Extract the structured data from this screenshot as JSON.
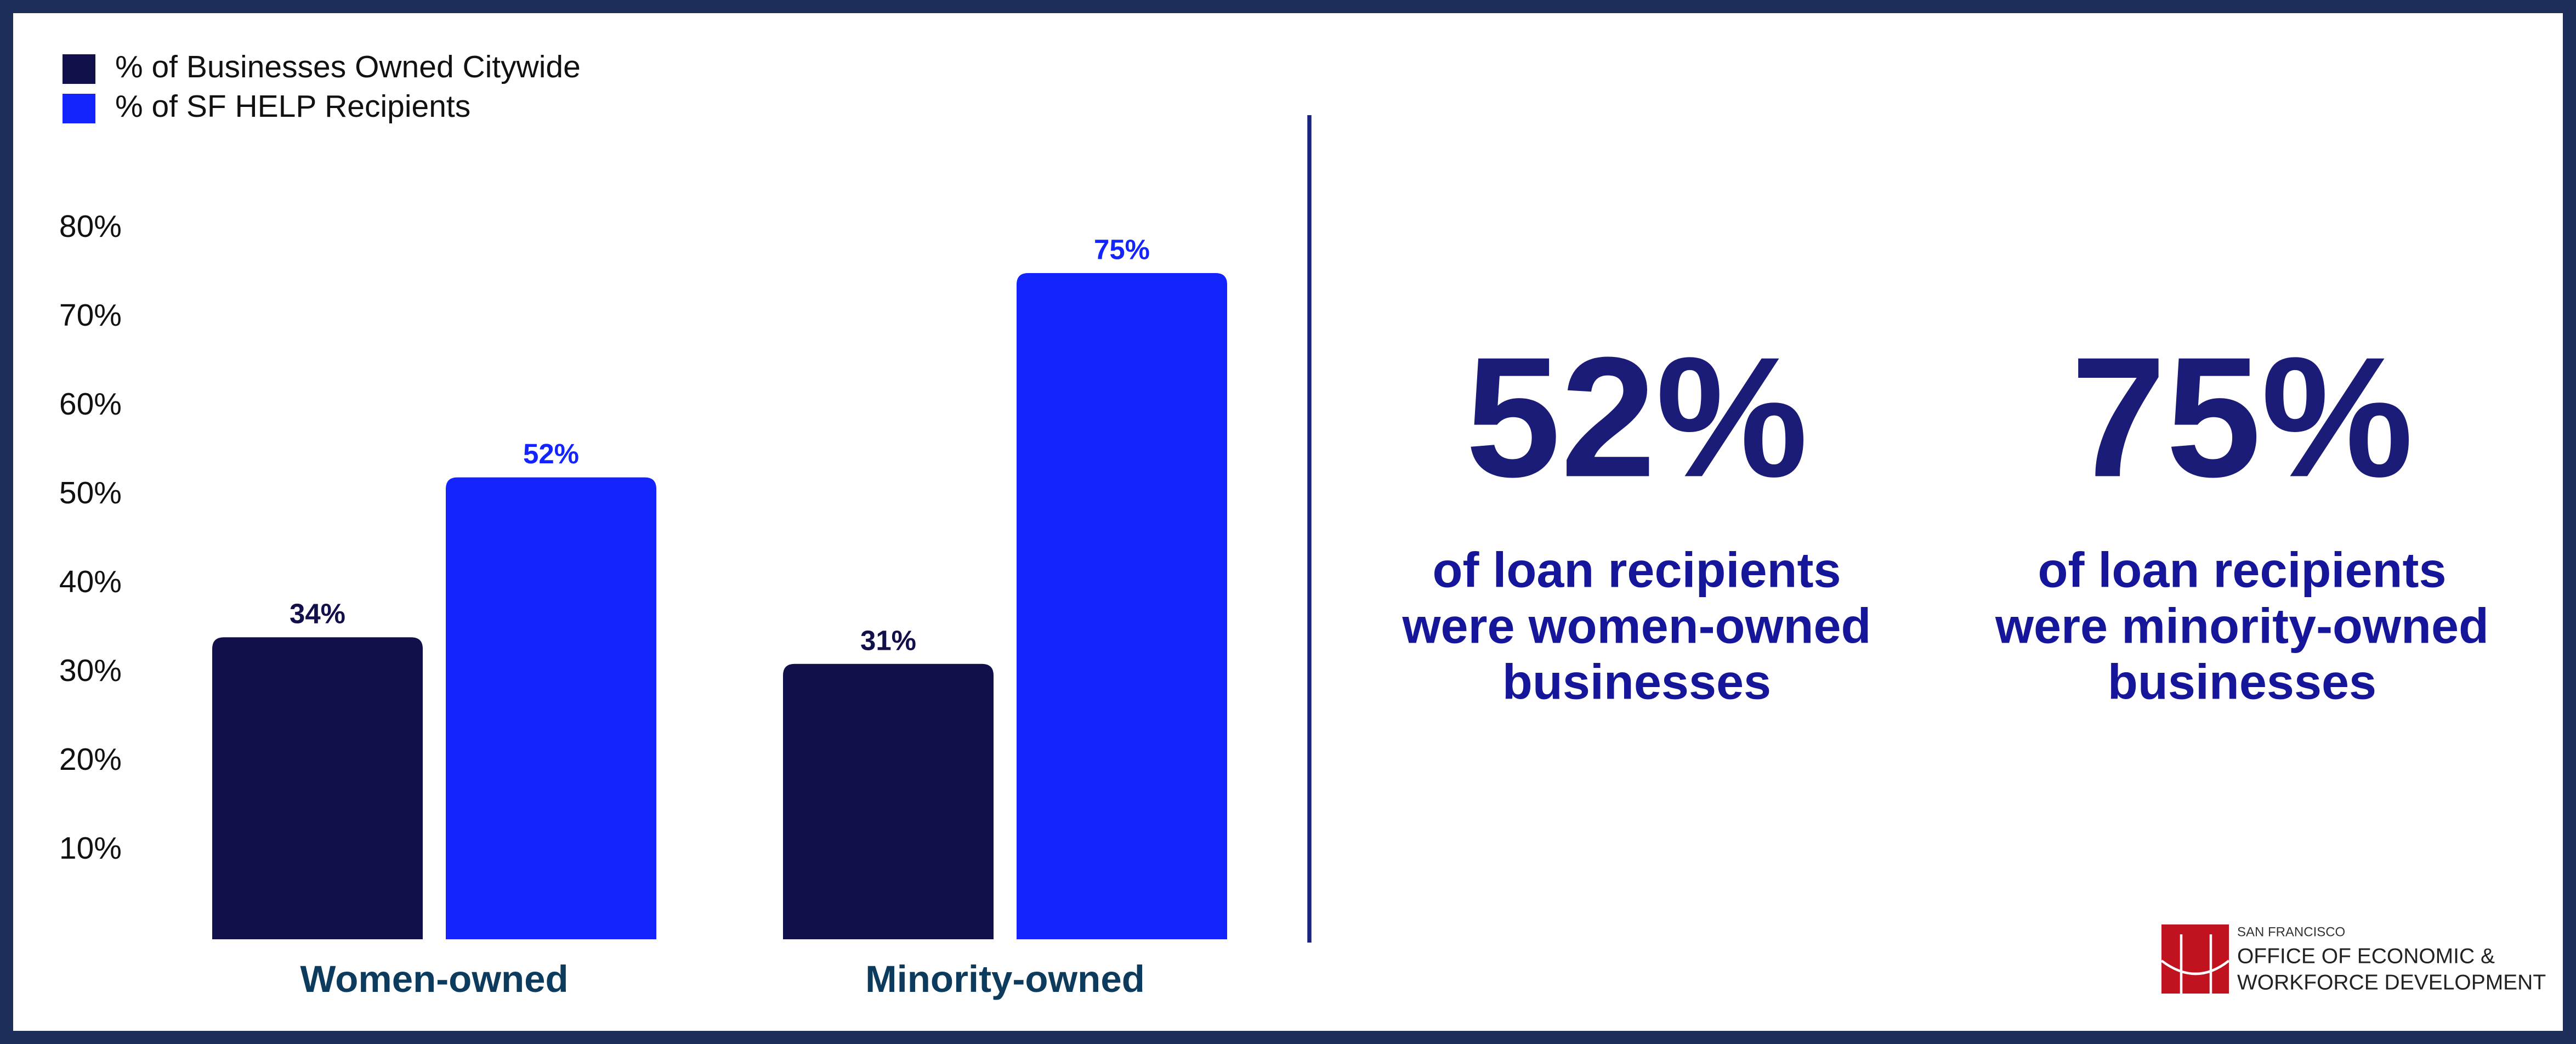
{
  "chart_data": {
    "type": "bar",
    "categories": [
      "Women-owned",
      "Minority-owned"
    ],
    "series": [
      {
        "name": "% of Businesses Owned Citywide",
        "color": "#12104a",
        "values": [
          34,
          31
        ],
        "value_labels": [
          "34%",
          "31%"
        ]
      },
      {
        "name": "% of SF HELP Recipients",
        "color": "#1424ff",
        "values": [
          52,
          75
        ],
        "value_labels": [
          "52%",
          "75%"
        ]
      }
    ],
    "ylim": [
      0,
      80
    ],
    "yticks": [
      {
        "value": 10,
        "label": "10%"
      },
      {
        "value": 20,
        "label": "20%"
      },
      {
        "value": 30,
        "label": "30%"
      },
      {
        "value": 40,
        "label": "40%"
      },
      {
        "value": 50,
        "label": "50%"
      },
      {
        "value": 60,
        "label": "60%"
      },
      {
        "value": 70,
        "label": "70%"
      },
      {
        "value": 80,
        "label": "80%"
      }
    ],
    "legend": "top-left"
  },
  "stats": [
    {
      "value": "52%",
      "lines": [
        "of loan recipients",
        "were women-owned",
        "businesses"
      ]
    },
    {
      "value": "75%",
      "lines": [
        "of loan recipients",
        "were minority-owned",
        "businesses"
      ]
    }
  ],
  "logo": {
    "small": "SAN FRANCISCO",
    "line1": "OFFICE OF ECONOMIC &",
    "line2": "WORKFORCE DEVELOPMENT"
  }
}
